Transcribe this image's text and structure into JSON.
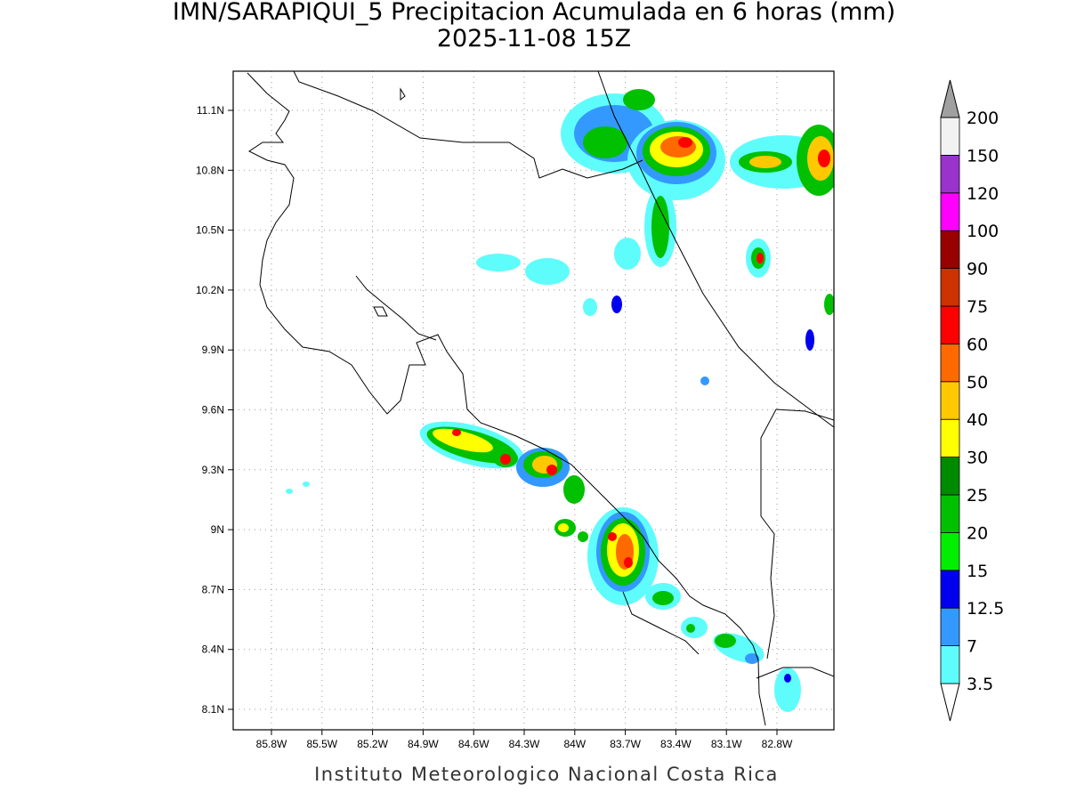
{
  "title": "IMN/SARAPIQUI_5 Precipitacion Acumulada en 6 horas (mm)",
  "subtitle": "2025-11-08 15Z",
  "map": {
    "lon_ticks": [
      "85.8W",
      "85.5W",
      "85.2W",
      "84.9W",
      "84.6W",
      "84.3W",
      "84W",
      "83.7W",
      "83.4W",
      "83.1W",
      "82.8W"
    ],
    "lat_ticks": [
      "8.1N",
      "8.4N",
      "8.7N",
      "9N",
      "9.3N",
      "9.6N",
      "9.9N",
      "10.2N",
      "10.5N",
      "10.8N",
      "11.1N"
    ]
  },
  "colorbar": {
    "levels": [
      3.5,
      7,
      12.5,
      15,
      20,
      25,
      30,
      40,
      50,
      60,
      75,
      90,
      100,
      120,
      150,
      200
    ],
    "colors": [
      "#5ffcfc",
      "#3399ff",
      "#0000ee",
      "#00ee00",
      "#00c000",
      "#008a00",
      "#ffff00",
      "#ffc800",
      "#ff6a00",
      "#ff0000",
      "#cc3300",
      "#990000",
      "#ff00ff",
      "#9933cc",
      "#f2f2f2"
    ],
    "under_color": "#ffffff",
    "over_color": "#a0a0a0"
  },
  "footer": "Instituto Meteorologico Nacional Costa Rica"
}
